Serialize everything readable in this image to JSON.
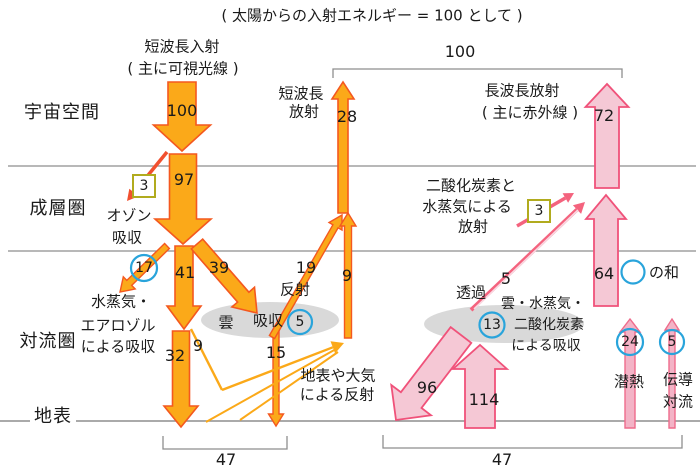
{
  "title": "( 太陽からの入射エネルギー = 100 として )",
  "layers": {
    "space": "宇宙空間",
    "stratosphere": "成層圏",
    "troposphere": "対流圏",
    "surface": "地表"
  },
  "labels": {
    "incoming_line1": "短波長入射",
    "incoming_line2": "( 主に可視光線 )",
    "shortwave_out_line1": "短波長",
    "shortwave_out_line2": "放射",
    "longwave_out_line1": "長波長放射",
    "longwave_out_line2": "( 主に赤外線 )",
    "ozone_line1": "オゾン",
    "ozone_line2": "吸収",
    "aerosol_line1": "水蒸気・",
    "aerosol_line2": "エアロゾル",
    "aerosol_line3": "による吸収",
    "cloud": "雲",
    "cloud_absorption": "吸収",
    "reflection": "反射",
    "surface_reflection_line1": "地表や大気",
    "surface_reflection_line2": "による反射",
    "co2_emission_line1": "二酸化炭素と",
    "co2_emission_line2": "水蒸気による",
    "co2_emission_line3": "放射",
    "transmission": "透過",
    "longwave_absorption_line1": "雲・水蒸気・",
    "longwave_absorption_line2": "二酸化炭素",
    "longwave_absorption_line3": "による吸収",
    "sum_note": "の和",
    "latent_heat": "潜熱",
    "conduction_line1": "伝導",
    "conduction_line2": "対流"
  },
  "values": {
    "incoming": "100",
    "top_bracket": "100",
    "after_ozone": "97",
    "ozone_absorbed": "3",
    "aerosol_absorbed": "17",
    "direct_down": "41",
    "to_cloud": "39",
    "surface_absorbed": "32",
    "scattered_up": "9",
    "cloud_reflected": "19",
    "cloud_absorbed": "5",
    "through_cloud": "15",
    "reflected_up": "9",
    "shortwave_out": "28",
    "longwave_out": "72",
    "co2_emission": "3",
    "transmitted": "5",
    "atmosphere_out": "64",
    "longwave_absorbed": "13",
    "back_radiation": "96",
    "surface_radiation": "114",
    "latent": "24",
    "conduction": "5",
    "surface_left_total": "47",
    "surface_right_total": "47"
  },
  "colors": {
    "orange_fill": "#FBA919",
    "orange_stroke": "#F4581F",
    "red_arrow": "#F1502F",
    "pink_fill": "#F5C8D5",
    "pink_stroke": "#F0527A",
    "pink_thin_fill": "#F3B3C6",
    "pink_thin_stroke": "#EE6C8C",
    "pink_line": "#F4637E",
    "pink_core": "#F9D9E2",
    "blue_circle": "#29A4DB",
    "olive_box": "#B1AB1E",
    "cloud": "#D9D9D9",
    "line": "#8E8E8E",
    "text": "#1A1A1A"
  }
}
